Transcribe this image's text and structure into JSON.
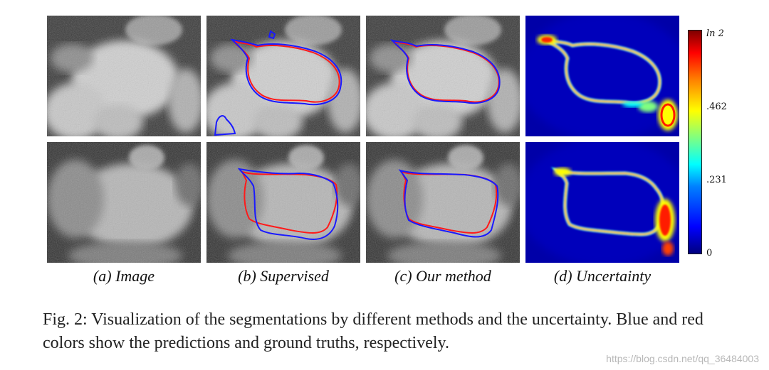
{
  "panels": {
    "labels": [
      "(a) Image",
      "(b) Supervised",
      "(c) Our method",
      "(d) Uncertainty"
    ]
  },
  "colorbar": {
    "ticks": [
      "ln 2",
      ".462",
      ".231",
      "0"
    ],
    "colors": [
      "#00007f",
      "#0000ff",
      "#00ffff",
      "#ffff00",
      "#ff0000",
      "#7f0000"
    ]
  },
  "caption": {
    "text": "Fig. 2: Visualization of the segmentations by different methods and the uncertainty. Blue and red colors show the predictions and ground truths, respectively."
  },
  "watermark": {
    "text": "https://blog.csdn.net/qq_36484003"
  },
  "colors": {
    "prediction": "#1a1aff",
    "ground_truth": "#ff1a1a"
  }
}
